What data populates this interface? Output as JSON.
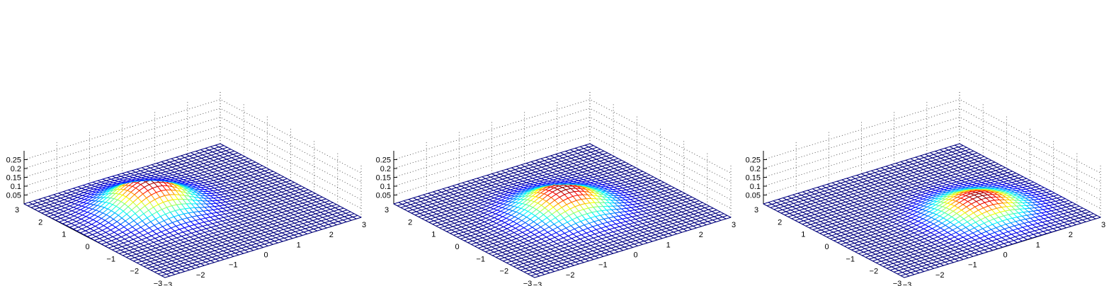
{
  "chart_data": [
    {
      "type": "surface",
      "title": "",
      "xlabel": "",
      "ylabel": "",
      "zlabel": "",
      "x": {
        "range": [
          -3,
          3
        ],
        "ticks": [
          -3,
          -2,
          -1,
          0,
          1,
          2,
          3
        ],
        "tick_labels": [
          "−3",
          "−2",
          "−1",
          "0",
          "1",
          "2",
          "3"
        ]
      },
      "y": {
        "range": [
          -3,
          3
        ],
        "ticks": [
          -3,
          -2,
          -1,
          0,
          1,
          2,
          3
        ],
        "tick_labels": [
          "−3",
          "−2",
          "−1",
          "0",
          "1",
          "2",
          "3"
        ]
      },
      "z": {
        "range": [
          0,
          0.25
        ],
        "ticks": [
          0.05,
          0.1,
          0.15,
          0.2,
          0.25
        ],
        "tick_labels": [
          "0.05",
          "0.1",
          "0.15",
          "0.2",
          "0.25"
        ]
      },
      "grid": true,
      "colormap": "jet",
      "grid_points": 41,
      "surface": {
        "function": "bivariate_gaussian",
        "mean": [
          -0.8,
          0.8
        ],
        "sigma": [
          0.8,
          0.8
        ],
        "peak": 0.163
      }
    },
    {
      "type": "surface",
      "title": "",
      "xlabel": "",
      "ylabel": "",
      "zlabel": "",
      "x": {
        "range": [
          -3,
          3
        ],
        "ticks": [
          -3,
          -2,
          -1,
          0,
          1,
          2,
          3
        ],
        "tick_labels": [
          "−3",
          "−2",
          "−1",
          "0",
          "1",
          "2",
          "3"
        ]
      },
      "y": {
        "range": [
          -3,
          3
        ],
        "ticks": [
          -3,
          -2,
          -1,
          0,
          1,
          2,
          3
        ],
        "tick_labels": [
          "−3",
          "−2",
          "−1",
          "0",
          "1",
          "2",
          "3"
        ]
      },
      "z": {
        "range": [
          0,
          0.25
        ],
        "ticks": [
          0.05,
          0.1,
          0.15,
          0.2,
          0.25
        ],
        "tick_labels": [
          "0.05",
          "0.1",
          "0.15",
          "0.2",
          "0.25"
        ]
      },
      "grid": true,
      "colormap": "jet",
      "grid_points": 41,
      "surface": {
        "function": "bivariate_gaussian",
        "mean": [
          0,
          0
        ],
        "sigma": [
          0.8,
          0.8
        ],
        "peak": 0.131
      }
    },
    {
      "type": "surface",
      "title": "",
      "xlabel": "",
      "ylabel": "",
      "zlabel": "",
      "x": {
        "range": [
          -3,
          3
        ],
        "ticks": [
          -3,
          -2,
          -1,
          0,
          1,
          2,
          3
        ],
        "tick_labels": [
          "−3",
          "−2",
          "−1",
          "0",
          "1",
          "2",
          "3"
        ]
      },
      "y": {
        "range": [
          -3,
          3
        ],
        "ticks": [
          -3,
          -2,
          -1,
          0,
          1,
          2,
          3
        ],
        "tick_labels": [
          "−3",
          "−2",
          "−1",
          "0",
          "1",
          "2",
          "3"
        ]
      },
      "z": {
        "range": [
          0,
          0.25
        ],
        "ticks": [
          0.05,
          0.1,
          0.15,
          0.2,
          0.25
        ],
        "tick_labels": [
          "0.05",
          "0.1",
          "0.15",
          "0.2",
          "0.25"
        ]
      },
      "grid": true,
      "colormap": "jet",
      "grid_points": 41,
      "surface": {
        "function": "bivariate_gaussian",
        "mean": [
          0.8,
          -0.8
        ],
        "sigma": [
          0.8,
          0.8
        ],
        "peak": 0.098
      }
    }
  ]
}
